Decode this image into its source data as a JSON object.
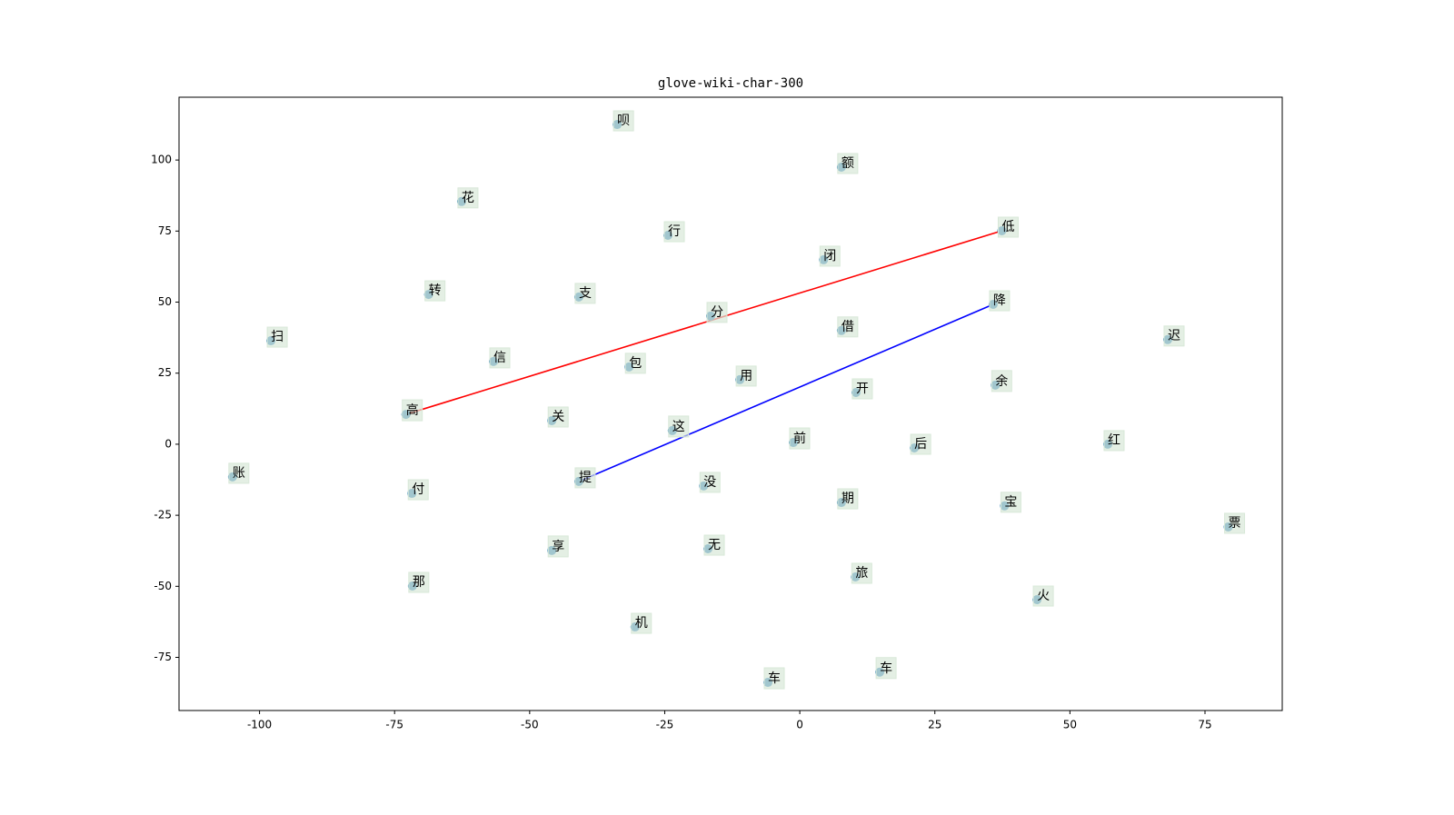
{
  "chart_data": {
    "type": "scatter",
    "title": "glove-wiki-char-300",
    "labels": [
      "呗",
      "额",
      "花",
      "行",
      "低",
      "闭",
      "转",
      "支",
      "降",
      "分",
      "借",
      "扫",
      "迟",
      "信",
      "包",
      "用",
      "余",
      "开",
      "高",
      "关",
      "这",
      "前",
      "后",
      "红",
      "账",
      "提",
      "没",
      "付",
      "期",
      "宝",
      "票",
      "无",
      "享",
      "旅",
      "那",
      "火",
      "机",
      "车",
      "车"
    ],
    "x": [
      -33.8,
      7.7,
      -62.6,
      -24.4,
      37.4,
      4.4,
      -68.7,
      -40.9,
      35.8,
      -16.5,
      7.7,
      -97.9,
      68.1,
      -56.7,
      -31.6,
      -11.1,
      36.2,
      10.4,
      -72.9,
      -45.9,
      -23.6,
      -1.2,
      21.2,
      57.0,
      -105.0,
      -40.9,
      -17.8,
      -71.8,
      7.7,
      37.9,
      79.3,
      -17.0,
      -45.9,
      10.3,
      -71.7,
      43.9,
      -30.5,
      14.8,
      -5.9
    ],
    "values": [
      112.5,
      97.5,
      85.4,
      73.5,
      75.1,
      64.9,
      52.7,
      51.8,
      49.2,
      45.1,
      40.0,
      36.4,
      36.8,
      29.1,
      27.2,
      22.7,
      20.8,
      18.2,
      10.5,
      8.3,
      4.8,
      0.6,
      -1.3,
      0.0,
      -11.5,
      -13.1,
      -14.7,
      -17.3,
      -20.5,
      -21.7,
      -29.1,
      -36.8,
      -37.4,
      -46.7,
      -49.9,
      -54.7,
      -64.3,
      -80.2,
      -83.8
    ],
    "color": "#1f77b4",
    "label_box_color": "#d8e8d8",
    "lines": [
      {
        "color": "#ff0000",
        "x": [
          -72.9,
          37.4
        ],
        "values": [
          10.5,
          75.1
        ]
      },
      {
        "color": "#0000ff",
        "x": [
          -40.9,
          35.8
        ],
        "values": [
          -13.1,
          49.2
        ]
      }
    ],
    "xlim": [
      -114.9,
      89.3
    ],
    "ylim": [
      -93.7,
      122.1
    ],
    "xticks": [
      -100,
      -75,
      -50,
      -25,
      0,
      25,
      50,
      75
    ],
    "yticks": [
      -75,
      -50,
      -25,
      0,
      25,
      50,
      75,
      100
    ]
  }
}
